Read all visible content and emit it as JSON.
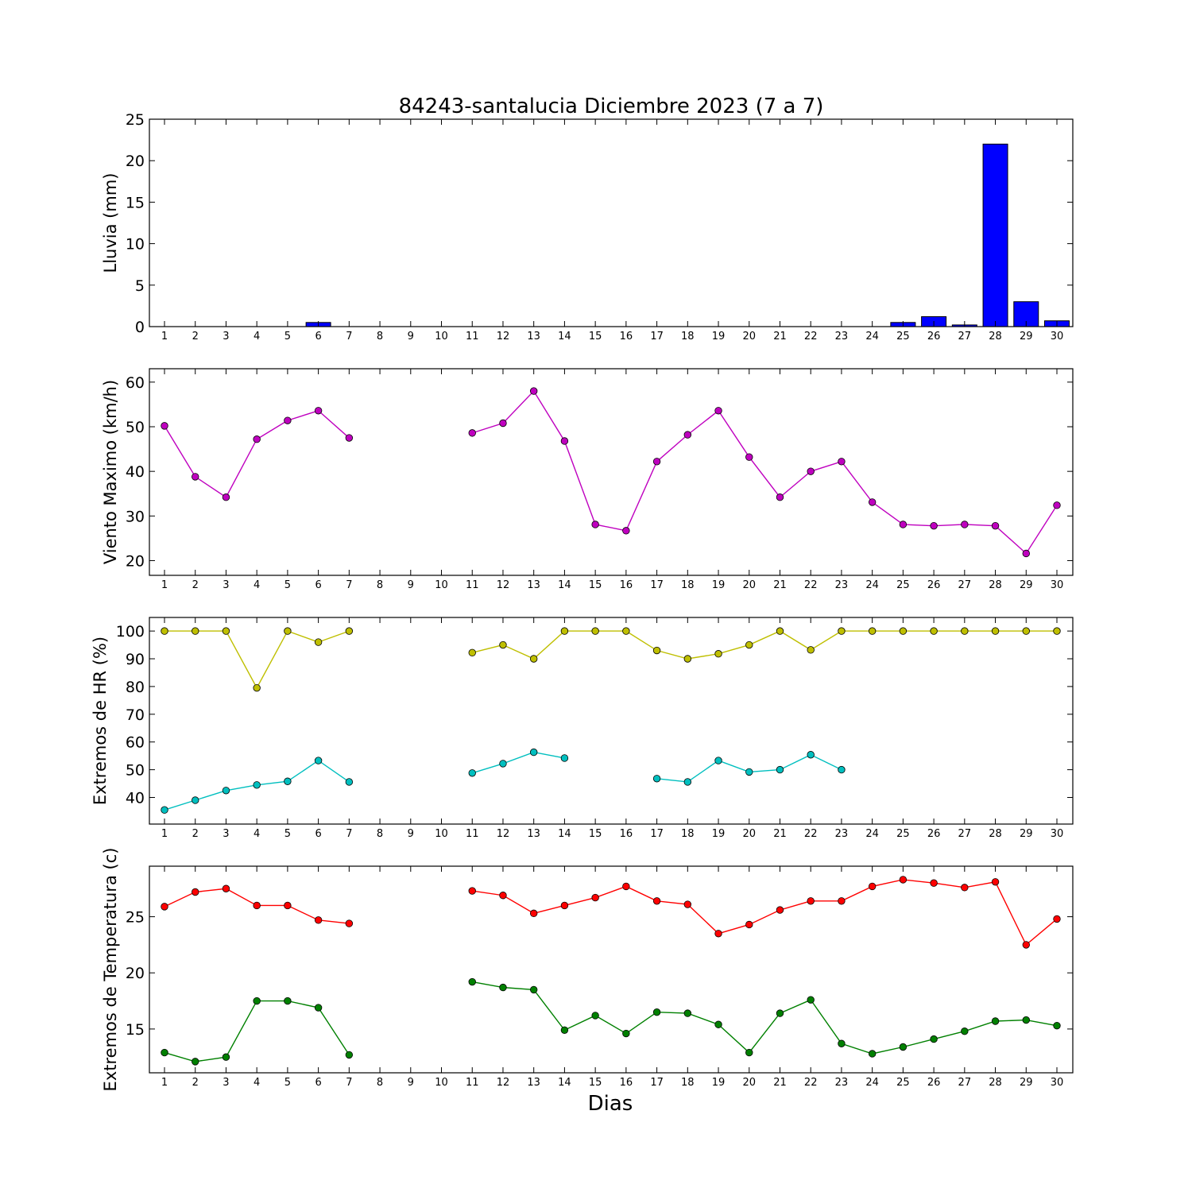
{
  "title": "84243-santalucia Diciembre 2023  (7 a 7)",
  "xlabel": "Dias",
  "chart_data": [
    {
      "type": "bar",
      "ylabel": "Lluvia (mm)",
      "ylim": [
        0,
        25
      ],
      "yticks": [
        0,
        5,
        10,
        15,
        20,
        25
      ],
      "categories": [
        1,
        2,
        3,
        4,
        5,
        6,
        7,
        8,
        9,
        10,
        11,
        12,
        13,
        14,
        15,
        16,
        17,
        18,
        19,
        20,
        21,
        22,
        23,
        24,
        25,
        26,
        27,
        28,
        29,
        30
      ],
      "series": [
        {
          "color": "#0000ff",
          "values": [
            0,
            0,
            0,
            0,
            0,
            0.5,
            0,
            0,
            0,
            0,
            0,
            0,
            0,
            0,
            0,
            0,
            0,
            0,
            0,
            0,
            0,
            0,
            0,
            0,
            0.5,
            1.2,
            0.2,
            22,
            3,
            0.7
          ]
        }
      ]
    },
    {
      "type": "line",
      "ylabel": "Viento Maximo (km/h)",
      "ylim": [
        16.7,
        63
      ],
      "yticks": [
        20,
        30,
        40,
        50,
        60
      ],
      "categories": [
        1,
        2,
        3,
        4,
        5,
        6,
        7,
        8,
        9,
        10,
        11,
        12,
        13,
        14,
        15,
        16,
        17,
        18,
        19,
        20,
        21,
        22,
        23,
        24,
        25,
        26,
        27,
        28,
        29,
        30
      ],
      "series": [
        {
          "color": "#bf00bf",
          "values": [
            50.2,
            38.8,
            34.2,
            47.2,
            51.4,
            53.6,
            47.5,
            null,
            null,
            null,
            48.6,
            50.8,
            58,
            46.8,
            28.1,
            26.7,
            42.2,
            48.2,
            53.6,
            43.2,
            34.2,
            40,
            42.2,
            33.1,
            28.1,
            27.8,
            28.1,
            27.8,
            21.6,
            32.4
          ]
        }
      ]
    },
    {
      "type": "line",
      "ylabel": "Extremos de HR (%)",
      "ylim": [
        30.4,
        104.9
      ],
      "yticks": [
        40,
        50,
        60,
        70,
        80,
        90,
        100
      ],
      "categories": [
        1,
        2,
        3,
        4,
        5,
        6,
        7,
        8,
        9,
        10,
        11,
        12,
        13,
        14,
        15,
        16,
        17,
        18,
        19,
        20,
        21,
        22,
        23,
        24,
        25,
        26,
        27,
        28,
        29,
        30
      ],
      "series": [
        {
          "color": "#bfbf00",
          "values": [
            100,
            100,
            100,
            79.5,
            100,
            96,
            100,
            null,
            null,
            null,
            92.2,
            95,
            90,
            100,
            100,
            100,
            93,
            90,
            91.8,
            95,
            100,
            93.2,
            100,
            100,
            100,
            100,
            100,
            100,
            100,
            100
          ]
        },
        {
          "color": "#00bfbf",
          "values": [
            35.5,
            39,
            42.5,
            44.5,
            45.8,
            53.3,
            45.6,
            null,
            null,
            null,
            48.8,
            52.2,
            56.3,
            54.2,
            null,
            null,
            46.8,
            45.6,
            53.3,
            49.2,
            50,
            55.4,
            50,
            null,
            null,
            null,
            null,
            null,
            null,
            null
          ]
        }
      ]
    },
    {
      "type": "line",
      "ylabel": "Extremos de Temperatura (c)",
      "ylim": [
        11.1,
        29.5
      ],
      "yticks": [
        15,
        20,
        25
      ],
      "categories": [
        1,
        2,
        3,
        4,
        5,
        6,
        7,
        8,
        9,
        10,
        11,
        12,
        13,
        14,
        15,
        16,
        17,
        18,
        19,
        20,
        21,
        22,
        23,
        24,
        25,
        26,
        27,
        28,
        29,
        30
      ],
      "series": [
        {
          "color": "#ff0000",
          "values": [
            25.9,
            27.2,
            27.5,
            26,
            26,
            24.7,
            24.4,
            null,
            null,
            null,
            27.3,
            26.9,
            25.3,
            26,
            26.7,
            27.7,
            26.4,
            26.1,
            23.5,
            24.3,
            25.6,
            26.4,
            26.4,
            27.7,
            28.3,
            28,
            27.6,
            28.1,
            22.5,
            24.8
          ]
        },
        {
          "color": "#008000",
          "values": [
            12.9,
            12.1,
            12.5,
            17.5,
            17.5,
            16.9,
            12.7,
            null,
            null,
            null,
            19.2,
            18.7,
            18.5,
            14.9,
            16.2,
            14.6,
            16.5,
            16.4,
            15.4,
            12.9,
            16.4,
            17.6,
            13.7,
            12.8,
            13.4,
            14.1,
            14.8,
            15.7,
            15.8,
            15.3
          ]
        }
      ]
    }
  ]
}
